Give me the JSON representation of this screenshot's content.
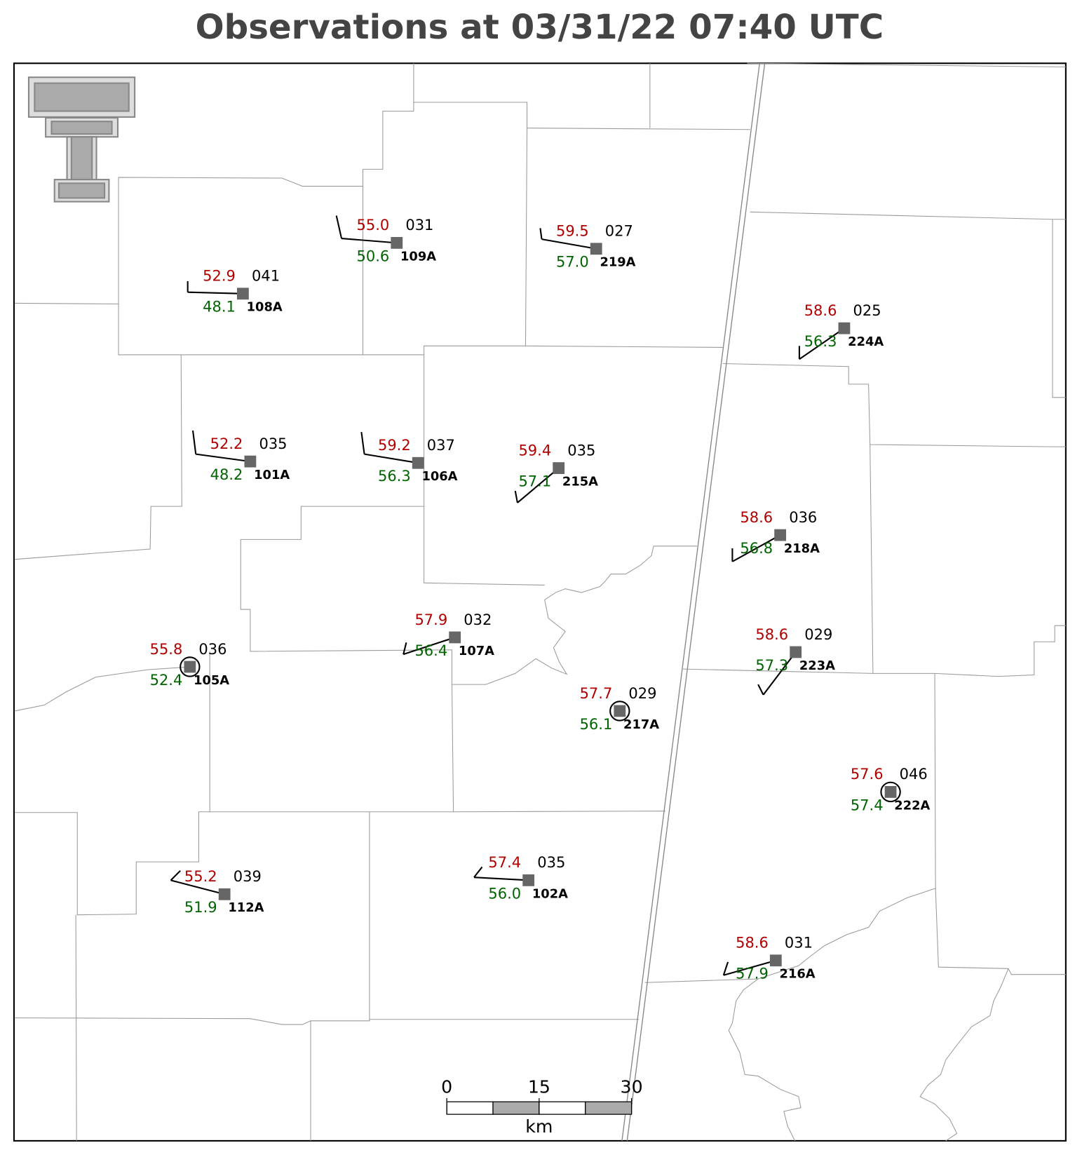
{
  "title": "Observations at 03/31/22 07:40 UTC",
  "stations": [
    {
      "id": "109A",
      "temperature": "55.0",
      "dewpoint": "50.6",
      "pressure": "031"
    },
    {
      "id": "219A",
      "temperature": "59.5",
      "dewpoint": "57.0",
      "pressure": "027"
    },
    {
      "id": "108A",
      "temperature": "52.9",
      "dewpoint": "48.1",
      "pressure": "041"
    },
    {
      "id": "224A",
      "temperature": "58.6",
      "dewpoint": "56.3",
      "pressure": "025"
    },
    {
      "id": "101A",
      "temperature": "52.2",
      "dewpoint": "48.2",
      "pressure": "035"
    },
    {
      "id": "106A",
      "temperature": "59.2",
      "dewpoint": "56.3",
      "pressure": "037"
    },
    {
      "id": "215A",
      "temperature": "59.4",
      "dewpoint": "57.1",
      "pressure": "035"
    },
    {
      "id": "218A",
      "temperature": "58.6",
      "dewpoint": "56.8",
      "pressure": "036"
    },
    {
      "id": "107A",
      "temperature": "57.9",
      "dewpoint": "56.4",
      "pressure": "032"
    },
    {
      "id": "223A",
      "temperature": "58.6",
      "dewpoint": "57.3",
      "pressure": "029"
    },
    {
      "id": "105A",
      "temperature": "55.8",
      "dewpoint": "52.4",
      "pressure": "036"
    },
    {
      "id": "217A",
      "temperature": "57.7",
      "dewpoint": "56.1",
      "pressure": "029"
    },
    {
      "id": "222A",
      "temperature": "57.6",
      "dewpoint": "57.4",
      "pressure": "046"
    },
    {
      "id": "112A",
      "temperature": "55.2",
      "dewpoint": "51.9",
      "pressure": "039"
    },
    {
      "id": "102A",
      "temperature": "57.4",
      "dewpoint": "56.0",
      "pressure": "035"
    },
    {
      "id": "216A",
      "temperature": "58.6",
      "dewpoint": "57.9",
      "pressure": "031"
    }
  ],
  "scale_bar": {
    "labels": [
      0,
      15,
      30
    ],
    "unit": "km"
  }
}
